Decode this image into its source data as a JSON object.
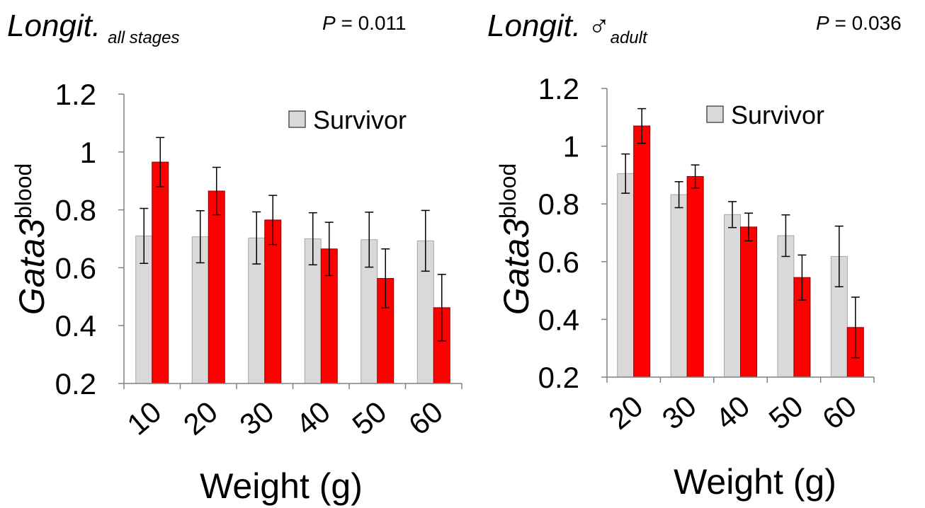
{
  "chart_data": [
    {
      "type": "bar",
      "title": "Longit.",
      "title_sub": "all stages",
      "p_value": {
        "label": "P",
        "text": " = 0.011"
      },
      "xlabel": "Weight (g)",
      "ylabel": "Gata3",
      "ylabel_sup": "blood",
      "ylim": [
        0.2,
        1.2
      ],
      "yticks": [
        "0.2",
        "0.4",
        "0.6",
        "0.8",
        "1",
        "1.2"
      ],
      "grid": false,
      "legend": {
        "placement": "top-right",
        "entries": [
          "Survivor"
        ]
      },
      "categories": [
        "10",
        "20",
        "30",
        "40",
        "50",
        "60"
      ],
      "series": [
        {
          "name": "Survivor",
          "color": "#d9d9d9",
          "values": [
            0.71,
            0.707,
            0.703,
            0.7,
            0.697,
            0.693
          ],
          "errors": [
            0.095,
            0.09,
            0.09,
            0.09,
            0.095,
            0.105
          ]
        },
        {
          "color": "#ff0000",
          "values": [
            0.965,
            0.865,
            0.765,
            0.665,
            0.563,
            0.462
          ],
          "errors": [
            0.085,
            0.082,
            0.085,
            0.092,
            0.102,
            0.115
          ]
        }
      ]
    },
    {
      "type": "bar",
      "title": "Longit.",
      "title_symbol": "♂",
      "title_sub": "adult",
      "p_value": {
        "label": "P",
        "text": " = 0.036"
      },
      "xlabel": "Weight (g)",
      "ylabel": "Gata3",
      "ylabel_sup": "blood",
      "ylim": [
        0.2,
        1.2
      ],
      "yticks": [
        "0.2",
        "0.4",
        "0.6",
        "0.8",
        "1",
        "1.2"
      ],
      "grid": false,
      "legend": {
        "placement": "top-right",
        "entries": [
          "Survivor"
        ]
      },
      "categories": [
        "20",
        "30",
        "40",
        "50",
        "60"
      ],
      "series": [
        {
          "name": "Survivor",
          "color": "#d9d9d9",
          "values": [
            0.905,
            0.832,
            0.763,
            0.69,
            0.618
          ],
          "errors": [
            0.068,
            0.045,
            0.045,
            0.072,
            0.105
          ]
        },
        {
          "color": "#ff0000",
          "values": [
            1.07,
            0.895,
            0.72,
            0.545,
            0.372
          ],
          "errors": [
            0.06,
            0.04,
            0.048,
            0.078,
            0.105
          ]
        }
      ]
    }
  ]
}
